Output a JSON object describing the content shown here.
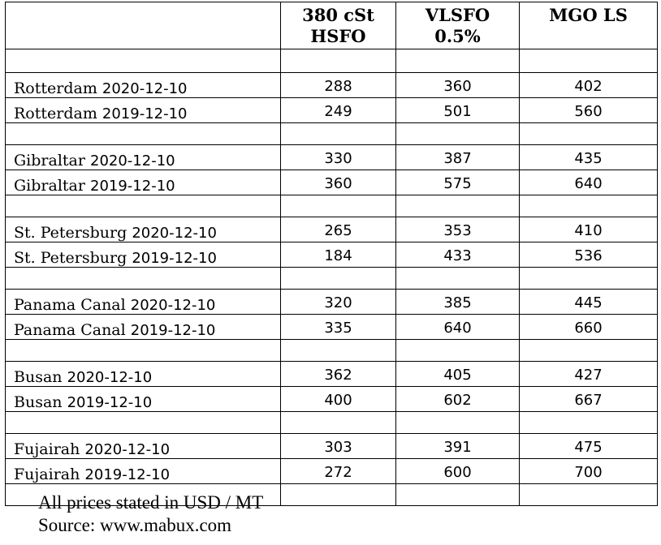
{
  "table": {
    "headers": [
      "",
      "380 cSt\nHSFO",
      "VLSFO\n0.5%",
      "MGO LS"
    ],
    "header_lines": {
      "hsfo": [
        "380 cSt",
        "HSFO"
      ],
      "vlsfo": [
        "VLSFO",
        "0.5%"
      ],
      "mgo": [
        "MGO LS"
      ]
    },
    "groups": [
      {
        "rows": [
          {
            "port": "Rotterdam",
            "date": "2020-12-10",
            "hsfo": "288",
            "vlsfo": "360",
            "mgo": "402"
          },
          {
            "port": "Rotterdam",
            "date": "2019-12-10",
            "hsfo": "249",
            "vlsfo": "501",
            "mgo": "560"
          }
        ]
      },
      {
        "rows": [
          {
            "port": "Gibraltar",
            "date": "2020-12-10",
            "hsfo": "330",
            "vlsfo": "387",
            "mgo": "435"
          },
          {
            "port": "Gibraltar",
            "date": "2019-12-10",
            "hsfo": "360",
            "vlsfo": "575",
            "mgo": "640"
          }
        ]
      },
      {
        "rows": [
          {
            "port": "St. Petersburg",
            "date": "2020-12-10",
            "hsfo": "265",
            "vlsfo": "353",
            "mgo": "410"
          },
          {
            "port": "St. Petersburg",
            "date": "2019-12-10",
            "hsfo": "184",
            "vlsfo": "433",
            "mgo": "536"
          }
        ]
      },
      {
        "rows": [
          {
            "port": "Panama Canal",
            "date": "2020-12-10",
            "hsfo": "320",
            "vlsfo": "385",
            "mgo": "445"
          },
          {
            "port": "Panama Canal",
            "date": "2019-12-10",
            "hsfo": "335",
            "vlsfo": "640",
            "mgo": "660"
          }
        ]
      },
      {
        "rows": [
          {
            "port": "Busan",
            "date": "2020-12-10",
            "hsfo": "362",
            "vlsfo": "405",
            "mgo": "427"
          },
          {
            "port": "Busan",
            "date": "2019-12-10",
            "hsfo": "400",
            "vlsfo": "602",
            "mgo": "667"
          }
        ]
      },
      {
        "rows": [
          {
            "port": "Fujairah",
            "date": "2020-12-10",
            "hsfo": "303",
            "vlsfo": "391",
            "mgo": "475"
          },
          {
            "port": "Fujairah",
            "date": "2019-12-10",
            "hsfo": "272",
            "vlsfo": "600",
            "mgo": "700"
          }
        ]
      }
    ]
  },
  "footnote": {
    "line1": "All prices stated in USD / MT",
    "line2": "Source: www.mabux.com"
  }
}
